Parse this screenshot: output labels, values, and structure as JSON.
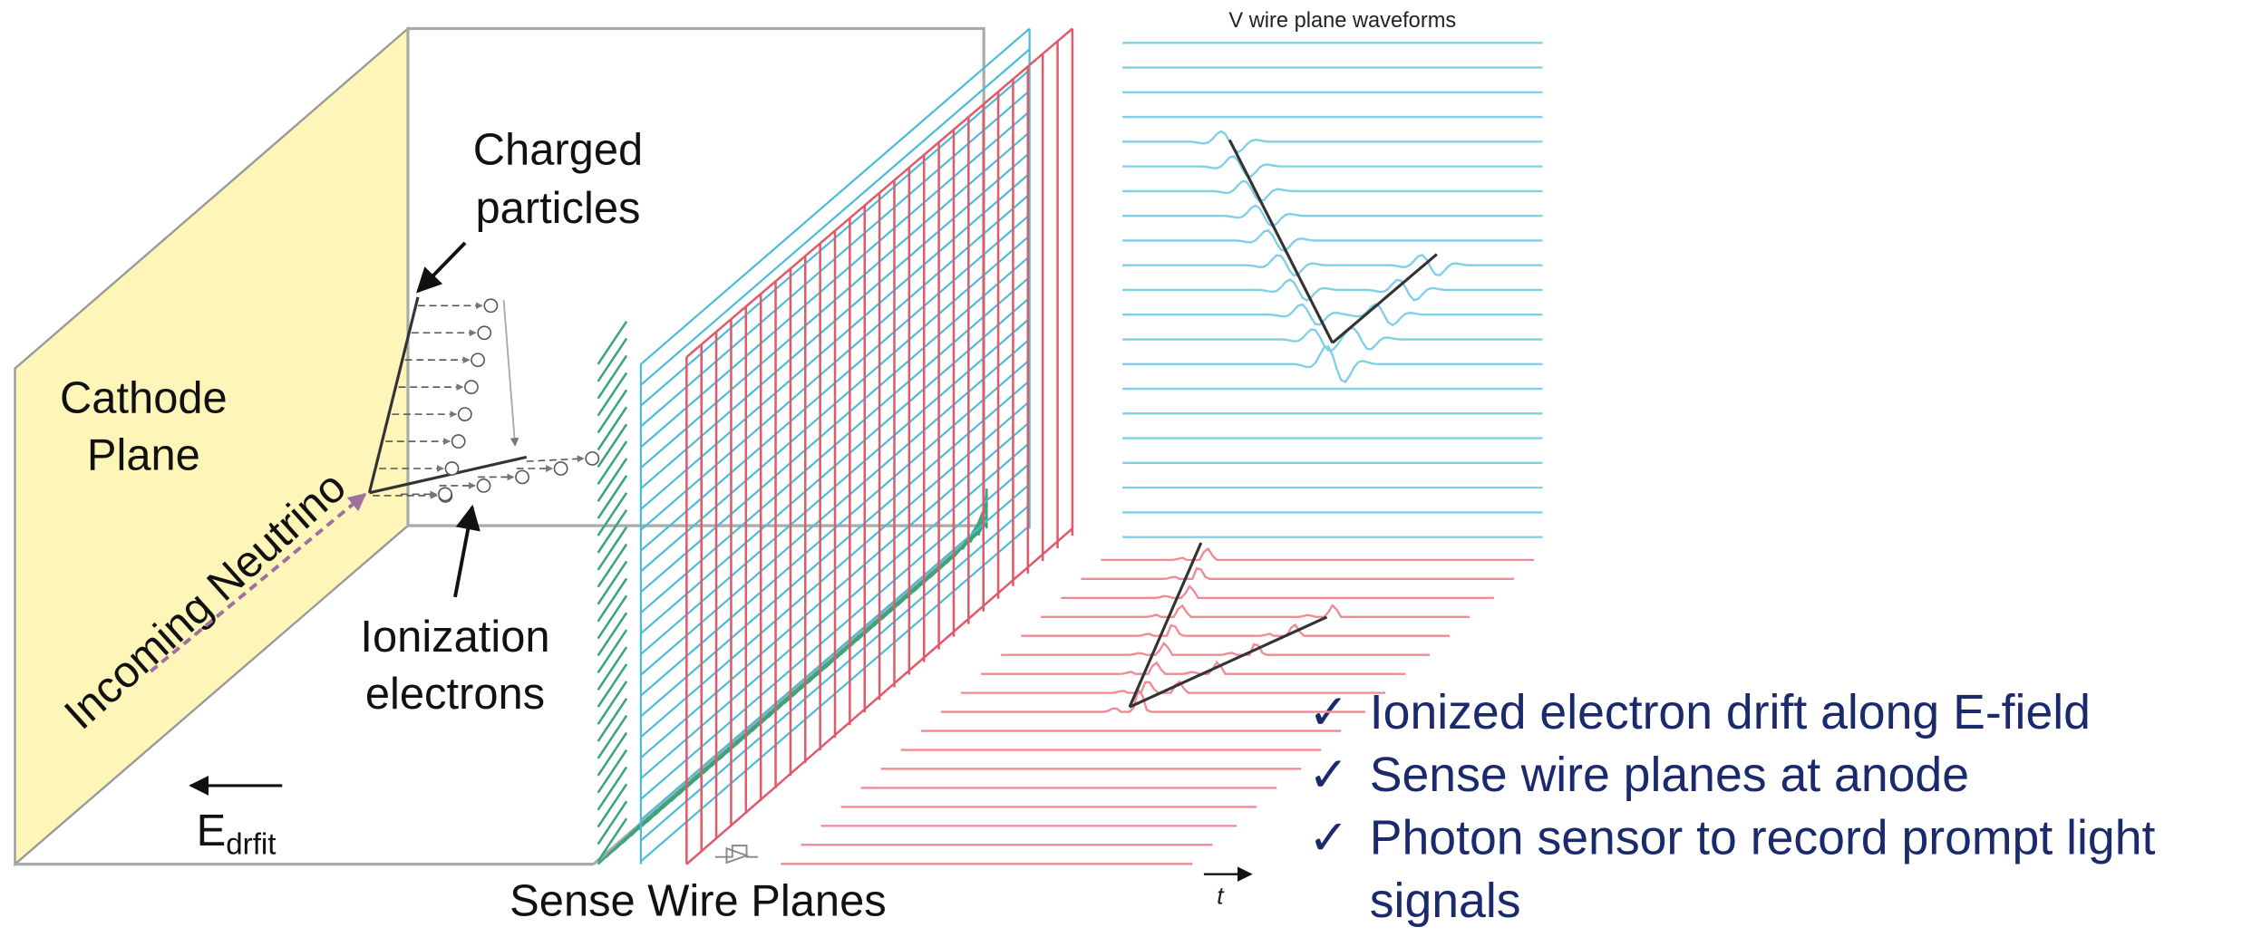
{
  "waveform_title": "V wire plane waveforms",
  "labels": {
    "charged_particles": [
      "Charged",
      "particles"
    ],
    "cathode_plane": [
      "Cathode",
      "Plane"
    ],
    "incoming_neutrino": "Incoming Neutrino",
    "ionization_electrons": [
      "Ionization",
      "electrons"
    ],
    "e_field": {
      "symbol": "E",
      "subscript": "drfit"
    },
    "sense_wire_planes": "Sense Wire Planes",
    "time_axis": "t"
  },
  "bullet_marker": "✓",
  "bullets": [
    [
      "Ionized electron drift along E-field"
    ],
    [
      "Sense wire planes at anode"
    ],
    [
      "Photon sensor to record prompt light",
      "signals"
    ]
  ]
}
